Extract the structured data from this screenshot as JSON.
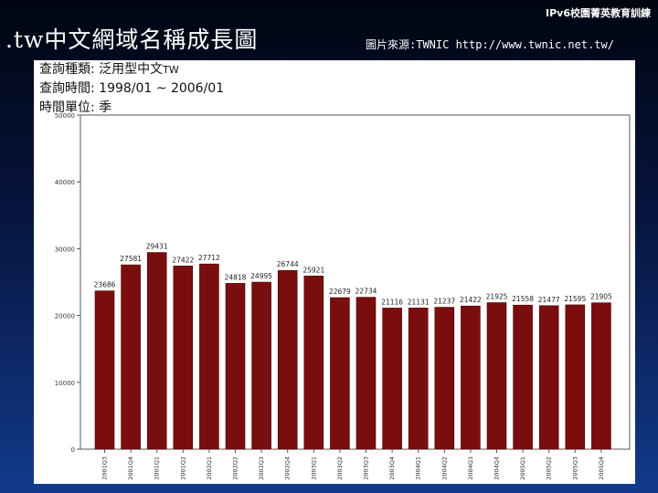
{
  "header": {
    "tag": "IPv6校園菁英教育訓練"
  },
  "slide": {
    "title": ".tw中文網域名稱成長圖",
    "source": "圖片來源:TWNIC http://www.twnic.net.tw/"
  },
  "query": {
    "type_label": "查詢種類:",
    "type_value": "泛用型中文",
    "type_suffix": "TW",
    "time_label": "查詢時間:",
    "time_value": "1998/01 ~ 2006/01",
    "unit_label": "時間單位:",
    "unit_value": "季"
  },
  "colors": {
    "bar": "#7a0e0e",
    "bar_edge": "#4a0505",
    "axis": "#555555"
  },
  "chart_data": {
    "type": "bar",
    "title": "",
    "xlabel": "",
    "ylabel": "",
    "ylim": [
      0,
      50000
    ],
    "yticks": [
      0,
      10000,
      20000,
      30000,
      40000,
      50000
    ],
    "ytick_labels": [
      "0",
      "10000",
      "20000",
      "30000",
      "40000",
      "50000"
    ],
    "categories": [
      "2001Q3",
      "2001Q4",
      "2001Q1",
      "2001Q2",
      "2002Q1",
      "2002Q2",
      "2002Q3",
      "2002Q4",
      "2003Q1",
      "2003Q2",
      "2003Q3",
      "2003Q4",
      "2004Q1",
      "2004Q2",
      "2004Q3",
      "2004Q4",
      "2005Q1",
      "2005Q2",
      "2005Q3",
      "2005Q4"
    ],
    "values": [
      23686,
      27581,
      29431,
      27422,
      27712,
      24818,
      24995,
      26744,
      25921,
      22679,
      22734,
      21116,
      21131,
      21237,
      21422,
      21925,
      21558,
      21477,
      21595,
      21905
    ],
    "data_labels": [
      "23686",
      "27581",
      "29431",
      "27422",
      "27712",
      "24818",
      "24995",
      "26744",
      "25921",
      "22679",
      "22734",
      "21116",
      "21131",
      "21237",
      "21422",
      "21925",
      "21558",
      "21477",
      "21595",
      "21905"
    ]
  }
}
